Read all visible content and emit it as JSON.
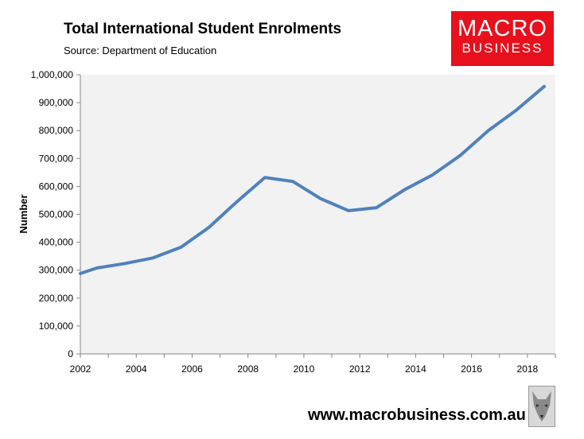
{
  "header": {
    "title": "Total International Student Enrolments",
    "source": "Source: Department of Education"
  },
  "logo": {
    "line1": "MACRO",
    "line2": "BUSINESS"
  },
  "footer": {
    "url": "www.macrobusiness.com.au"
  },
  "colors": {
    "line": "#4f81bd",
    "plot_bg": "#f2f2f2",
    "logo_bg": "#e8101d"
  },
  "chart_data": {
    "type": "line",
    "title": "Total International Student Enrolments",
    "subtitle": "Source: Department of Education",
    "xlabel": "",
    "ylabel": "Number",
    "xlim": [
      2002,
      2019
    ],
    "ylim": [
      0,
      1000000
    ],
    "x_ticks": [
      2002,
      2004,
      2006,
      2008,
      2010,
      2012,
      2014,
      2016,
      2018
    ],
    "x_tick_labels": [
      "2002",
      "2004",
      "2006",
      "2008",
      "2010",
      "2012",
      "2014",
      "2016",
      "2018"
    ],
    "y_ticks": [
      0,
      100000,
      200000,
      300000,
      400000,
      500000,
      600000,
      700000,
      800000,
      900000,
      1000000
    ],
    "y_tick_labels": [
      "0",
      "100,000",
      "200,000",
      "300,000",
      "400,000",
      "500,000",
      "600,000",
      "700,000",
      "800,000",
      "900,000",
      "1,000,000"
    ],
    "grid": false,
    "legend": "none",
    "series": [
      {
        "x": [
          2002,
          2002.6,
          2003.6,
          2004.6,
          2005.6,
          2006.6,
          2007.6,
          2008.6,
          2009.6,
          2010.6,
          2011.6,
          2012.6,
          2013.6,
          2014.6,
          2015.6,
          2016.6,
          2017.6,
          2018.6
        ],
        "values": [
          288000,
          308000,
          324000,
          344000,
          382000,
          453000,
          545000,
          632000,
          618000,
          556000,
          513000,
          524000,
          588000,
          641000,
          711000,
          800000,
          873000,
          958000
        ]
      }
    ]
  }
}
